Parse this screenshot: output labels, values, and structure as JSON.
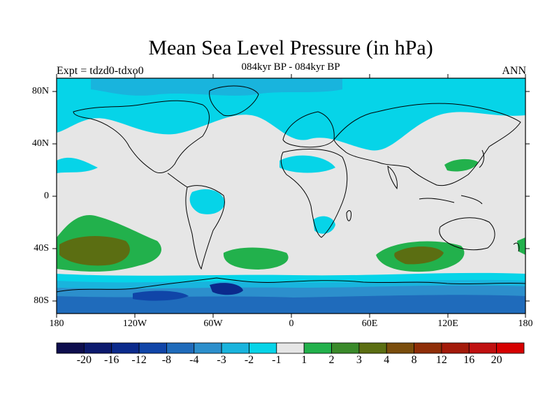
{
  "title": "Mean Sea Level Pressure (in hPa)",
  "subtitle": "084kyr BP - 084kyr BP",
  "left_string": "Expt = tdzd0-tdxo0",
  "right_string": "ANN",
  "lat_labels": [
    "80N",
    "40N",
    "0",
    "40S",
    "80S"
  ],
  "lon_labels": [
    "180",
    "120W",
    "60W",
    "0",
    "60E",
    "120E",
    "180"
  ],
  "colorbar": {
    "labels": [
      "-20",
      "-16",
      "-12",
      "-8",
      "-4",
      "-3",
      "-2",
      "-1",
      "1",
      "2",
      "3",
      "4",
      "8",
      "12",
      "16",
      "20"
    ],
    "colors": [
      "#0e0e4e",
      "#0c1a6e",
      "#0b2a8c",
      "#1045a8",
      "#1f6bbb",
      "#2c8fcc",
      "#19b4dd",
      "#06d4e8",
      "#e6e6e6",
      "#22b14c",
      "#3a8a2a",
      "#5b6e12",
      "#7a4d0c",
      "#8f2e08",
      "#a31a0a",
      "#c01010",
      "#d60000"
    ]
  },
  "colors": {
    "land_neutral": "#e6e6e6",
    "coast": "#000000"
  }
}
